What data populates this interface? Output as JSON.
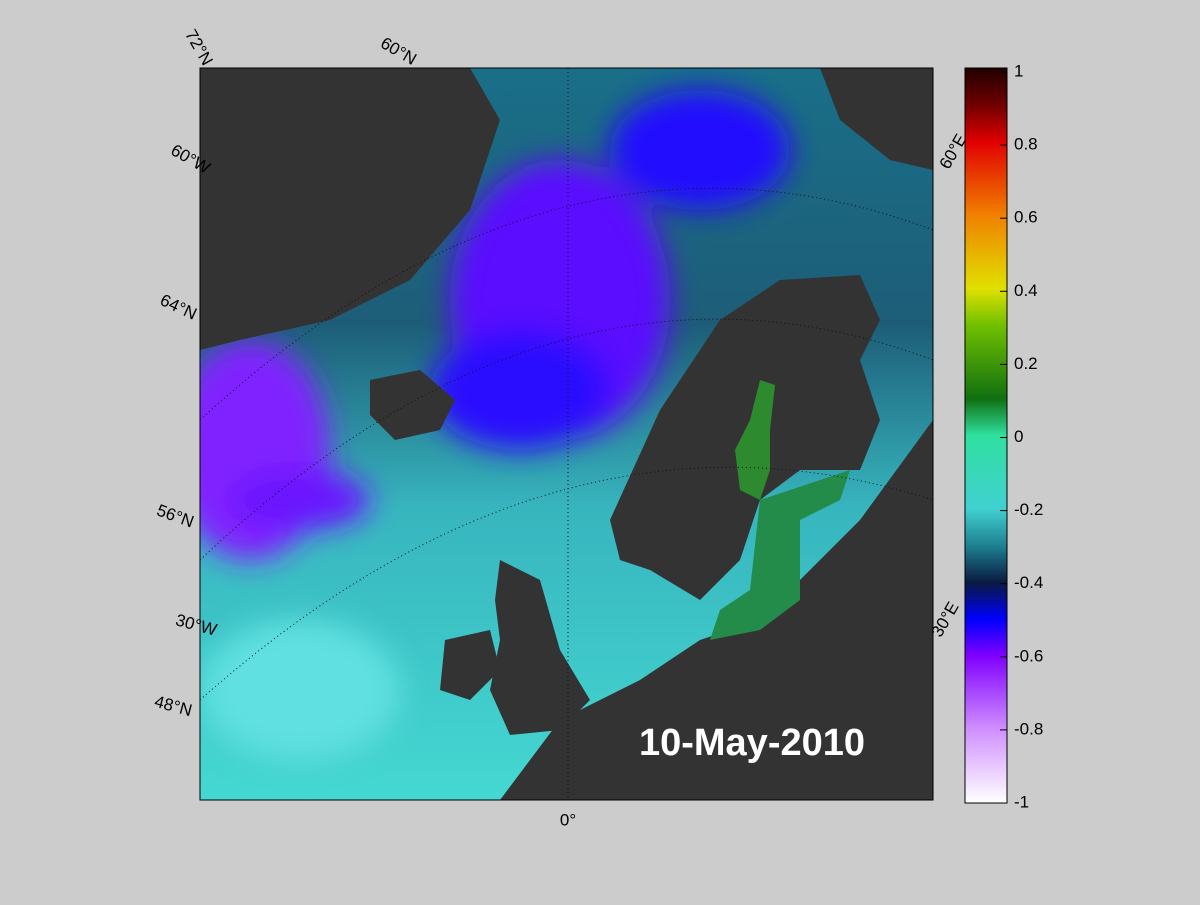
{
  "map": {
    "date_label": "10-May-2010",
    "graticule_labels": [
      "72°N",
      "60°N",
      "60°W",
      "64°N",
      "56°N",
      "30°W",
      "48°N",
      "0°",
      "60°E",
      "30°E"
    ]
  },
  "colorbar": {
    "lim": [
      -1,
      1
    ],
    "ticks": [
      1,
      0.8,
      0.6,
      0.4,
      0.2,
      0,
      -0.2,
      -0.4,
      -0.6,
      -0.8,
      -1
    ]
  }
}
